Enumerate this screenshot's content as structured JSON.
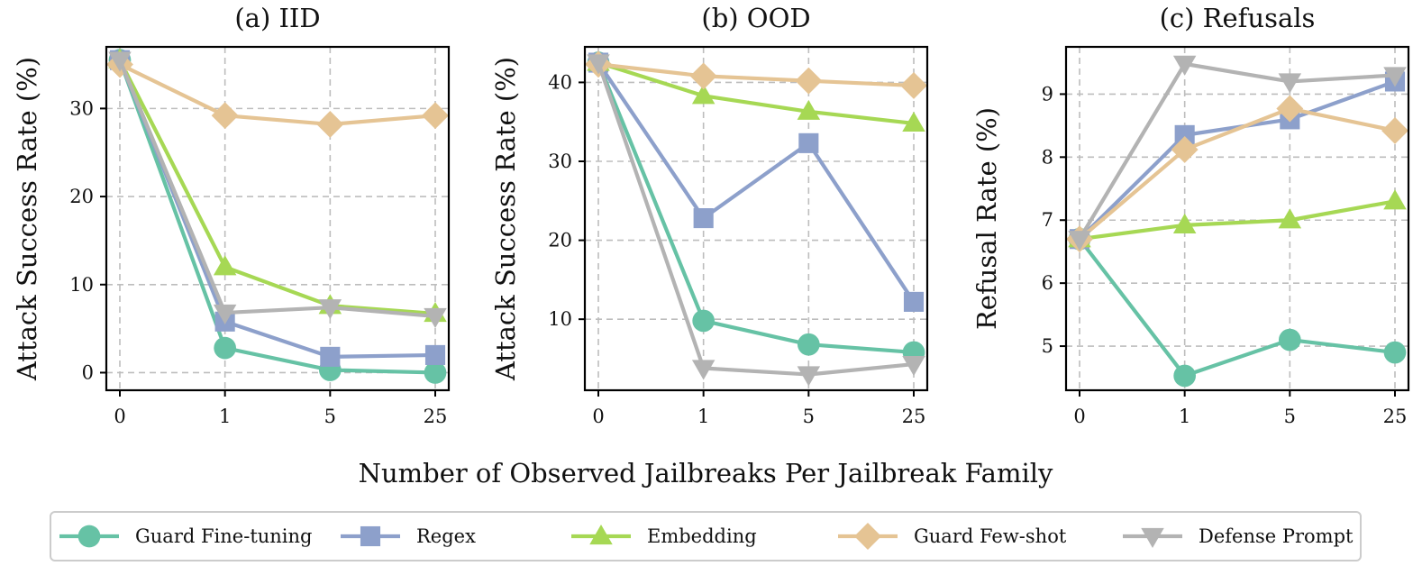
{
  "xlabel": "Number of Observed Jailbreaks Per Jailbreak Family",
  "series_styles": [
    {
      "name": "Guard Fine-tuning",
      "color": "#66c2a5",
      "marker": "circle"
    },
    {
      "name": "Regex",
      "color": "#8da0cb",
      "marker": "square"
    },
    {
      "name": "Embedding",
      "color": "#a6d854",
      "marker": "triangle-up"
    },
    {
      "name": "Guard Few-shot",
      "color": "#e5c494",
      "marker": "diamond"
    },
    {
      "name": "Defense Prompt",
      "color": "#b3b3b3",
      "marker": "triangle-down"
    }
  ],
  "chart_data": [
    {
      "type": "line",
      "title": "(a) IID",
      "ylabel": "Attack Success Rate (%)",
      "categories": [
        "0",
        "1",
        "5",
        "25"
      ],
      "ylim": [
        -2,
        37
      ],
      "yticks": [
        0,
        10,
        20,
        30
      ],
      "grid": true,
      "series": [
        {
          "name": "Guard Fine-tuning",
          "values": [
            35.5,
            2.8,
            0.3,
            0.0
          ]
        },
        {
          "name": "Regex",
          "values": [
            35.5,
            5.8,
            1.8,
            2.0
          ]
        },
        {
          "name": "Embedding",
          "values": [
            35.5,
            12.0,
            7.6,
            6.7
          ]
        },
        {
          "name": "Guard Few-shot",
          "values": [
            35.0,
            29.2,
            28.2,
            29.2
          ]
        },
        {
          "name": "Defense Prompt",
          "values": [
            35.5,
            6.8,
            7.4,
            6.4
          ]
        }
      ]
    },
    {
      "type": "line",
      "title": "(b) OOD",
      "ylabel": "Attack Success Rate (%)",
      "categories": [
        "0",
        "1",
        "5",
        "25"
      ],
      "ylim": [
        1,
        44.5
      ],
      "yticks": [
        10,
        20,
        30,
        40
      ],
      "grid": true,
      "series": [
        {
          "name": "Guard Fine-tuning",
          "values": [
            42.5,
            9.8,
            6.8,
            5.8
          ]
        },
        {
          "name": "Regex",
          "values": [
            42.5,
            22.8,
            32.3,
            12.2
          ]
        },
        {
          "name": "Embedding",
          "values": [
            42.5,
            38.3,
            36.3,
            34.8
          ]
        },
        {
          "name": "Guard Few-shot",
          "values": [
            42.3,
            40.8,
            40.2,
            39.6
          ]
        },
        {
          "name": "Defense Prompt",
          "values": [
            42.5,
            3.8,
            3.0,
            4.3
          ]
        }
      ]
    },
    {
      "type": "line",
      "title": "(c) Refusals",
      "ylabel": "Refusal Rate (%)",
      "categories": [
        "0",
        "1",
        "5",
        "25"
      ],
      "ylim": [
        4.3,
        9.75
      ],
      "yticks": [
        5,
        6,
        7,
        8,
        9
      ],
      "grid": true,
      "series": [
        {
          "name": "Guard Fine-tuning",
          "values": [
            6.7,
            4.53,
            5.1,
            4.9
          ]
        },
        {
          "name": "Regex",
          "values": [
            6.7,
            8.35,
            8.6,
            9.2
          ]
        },
        {
          "name": "Embedding",
          "values": [
            6.7,
            6.92,
            7.0,
            7.3
          ]
        },
        {
          "name": "Guard Few-shot",
          "values": [
            6.7,
            8.12,
            8.77,
            8.42
          ]
        },
        {
          "name": "Defense Prompt",
          "values": [
            6.7,
            9.48,
            9.2,
            9.3
          ]
        }
      ]
    }
  ],
  "legend": {
    "position": "bottom",
    "items": [
      "Guard Fine-tuning",
      "Regex",
      "Embedding",
      "Guard Few-shot",
      "Defense Prompt"
    ]
  }
}
